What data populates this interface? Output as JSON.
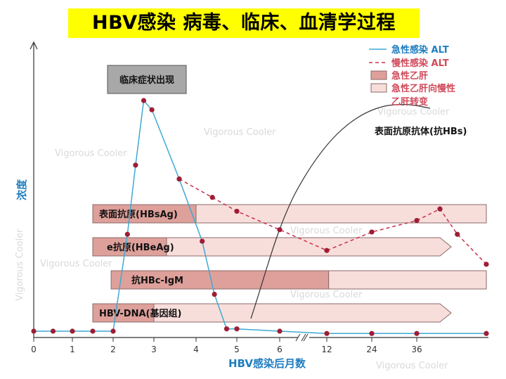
{
  "title": "HBV感染 病毒、临床、血清学过程",
  "chart_data": {
    "type": "line",
    "xlabel": "HBV感染后月数",
    "ylabel": "浓度",
    "x_ticks": [
      "0",
      "1",
      "2",
      "3",
      "4",
      "5",
      "6",
      "12",
      "24",
      "36"
    ],
    "series": [
      {
        "name": "急性感染 ALT",
        "style": "solid",
        "color": "#3fa9d4",
        "points": [
          [
            0,
            0.0
          ],
          [
            0.5,
            0.0
          ],
          [
            1,
            0.0
          ],
          [
            1.5,
            0.0
          ],
          [
            2,
            0.0
          ],
          [
            2.35,
            0.42
          ],
          [
            2.55,
            0.72
          ],
          [
            2.75,
            1.0
          ],
          [
            2.95,
            0.96
          ],
          [
            3.6,
            0.66
          ],
          [
            4.15,
            0.39
          ],
          [
            4.45,
            0.16
          ],
          [
            4.75,
            0.01
          ],
          [
            5,
            0.01
          ],
          [
            6,
            0.0
          ],
          [
            12,
            -0.01
          ],
          [
            24,
            -0.01
          ],
          [
            36,
            -0.01
          ],
          [
            48,
            -0.01
          ]
        ]
      },
      {
        "name": "慢性感染 ALT",
        "style": "dashed",
        "color": "#c8304a",
        "points": [
          [
            3.6,
            0.66
          ],
          [
            4.4,
            0.58
          ],
          [
            5,
            0.52
          ],
          [
            6,
            0.44
          ],
          [
            12,
            0.35
          ],
          [
            24,
            0.43
          ],
          [
            36,
            0.48
          ],
          [
            40,
            0.53
          ],
          [
            43,
            0.42
          ],
          [
            48,
            0.29
          ]
        ]
      }
    ],
    "bars": [
      {
        "label": "表面抗原(HBsAg)",
        "start": 1.5,
        "dark_end": 4.0,
        "end": 48
      },
      {
        "label": "e抗原(HBeAg)",
        "start": 1.5,
        "dark_end": 3.3,
        "end": 40
      },
      {
        "label": "抗HBc-IgM",
        "start": 1.95,
        "dark_end": 12.5,
        "end": 48
      },
      {
        "label": "HBV-DNA(基因组)",
        "start": 1.5,
        "dark_end": 3.0,
        "end": 40
      }
    ],
    "legend": [
      {
        "label": "急性感染 ALT",
        "kind": "solid-line",
        "color": "#3fa9d4"
      },
      {
        "label": "慢性感染 ALT",
        "kind": "dashed-line",
        "color": "#c8304a"
      },
      {
        "label": "急性乙肝",
        "kind": "box",
        "color": "#dea09a"
      },
      {
        "label": "急性乙肝向慢性",
        "kind": "box",
        "color": "#f8dedb"
      },
      {
        "label": "乙肝转变",
        "kind": "text",
        "color": "#d04a5a"
      }
    ],
    "legend_position": "top-right",
    "annotations": {
      "clinical": "临床症状出现",
      "anti_hbs": "表面抗原抗体(抗HBs)"
    },
    "watermark": "Vigorous Cooler",
    "colors": {
      "acute": "#dea09a",
      "chronic": "#f8dedb",
      "bar_border": "#8b6a6a",
      "axis_label": "#1f7ec0"
    }
  }
}
